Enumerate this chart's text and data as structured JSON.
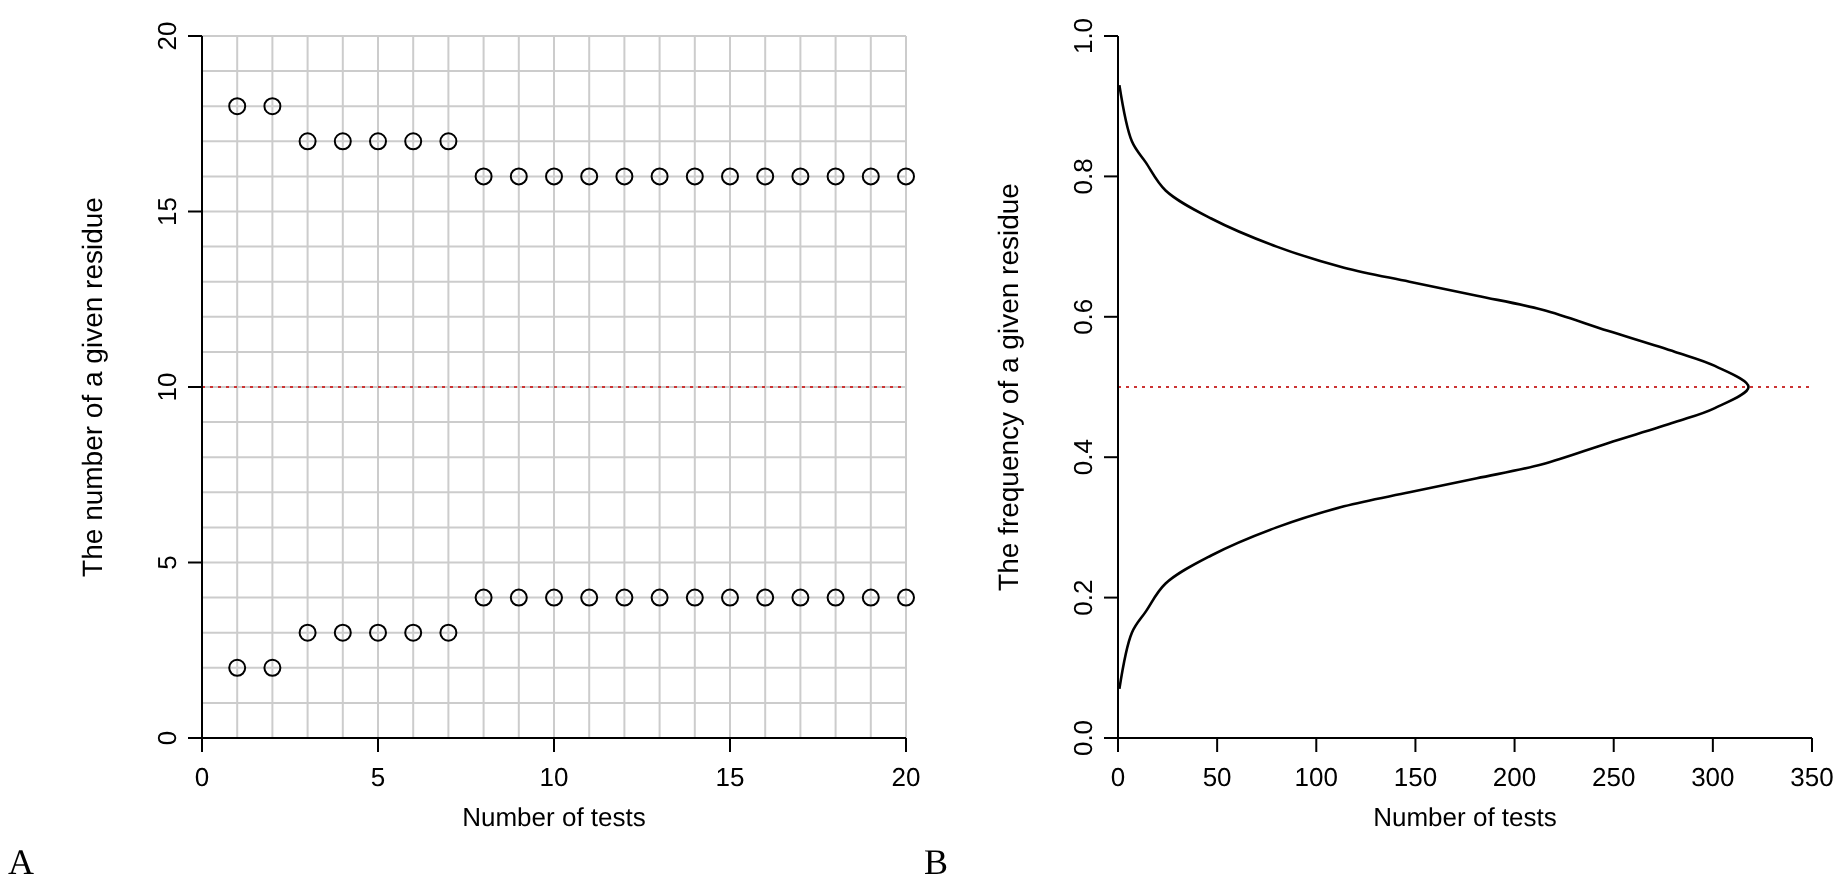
{
  "chart_data": [
    {
      "type": "scatter",
      "xlabel": "Number of tests",
      "ylabel": "The number of a given residue",
      "annotations": [
        "A"
      ],
      "marker": "circle",
      "grid": true,
      "x": [
        1,
        2,
        3,
        4,
        5,
        6,
        7,
        8,
        9,
        10,
        11,
        12,
        13,
        14,
        15,
        16,
        17,
        18,
        19,
        20
      ],
      "series": [
        {
          "color": "#000000",
          "values": [
            18,
            18,
            17,
            17,
            17,
            17,
            17,
            16,
            16,
            16,
            16,
            16,
            16,
            16,
            16,
            16,
            16,
            16,
            16,
            16
          ]
        },
        {
          "color": "#000000",
          "values": [
            2,
            2,
            3,
            3,
            3,
            3,
            3,
            4,
            4,
            4,
            4,
            4,
            4,
            4,
            4,
            4,
            4,
            4,
            4,
            4
          ]
        }
      ],
      "xlim": [
        0,
        20
      ],
      "ylim": [
        0,
        20
      ],
      "xticks": [
        0,
        {
          "value": 1,
          "label": null
        },
        {
          "value": 2,
          "label": null
        },
        {
          "value": 3,
          "label": null
        },
        {
          "value": 4,
          "label": null
        },
        5,
        {
          "value": 6,
          "label": null
        },
        {
          "value": 7,
          "label": null
        },
        {
          "value": 8,
          "label": null
        },
        {
          "value": 9,
          "label": null
        },
        10,
        {
          "value": 11,
          "label": null
        },
        {
          "value": 12,
          "label": null
        },
        {
          "value": 13,
          "label": null
        },
        {
          "value": 14,
          "label": null
        },
        15,
        {
          "value": 16,
          "label": null
        },
        {
          "value": 17,
          "label": null
        },
        {
          "value": 18,
          "label": null
        },
        {
          "value": 19,
          "label": null
        },
        20
      ],
      "yticks": [
        0,
        {
          "value": 1,
          "label": null
        },
        {
          "value": 2,
          "label": null
        },
        {
          "value": 3,
          "label": null
        },
        {
          "value": 4,
          "label": null
        },
        5,
        {
          "value": 6,
          "label": null
        },
        {
          "value": 7,
          "label": null
        },
        {
          "value": 8,
          "label": null
        },
        {
          "value": 9,
          "label": null
        },
        10,
        {
          "value": 11,
          "label": null
        },
        {
          "value": 12,
          "label": null
        },
        {
          "value": 13,
          "label": null
        },
        {
          "value": 14,
          "label": null
        },
        15,
        {
          "value": 16,
          "label": null
        },
        {
          "value": 17,
          "label": null
        },
        {
          "value": 18,
          "label": null
        },
        {
          "value": 19,
          "label": null
        },
        20
      ],
      "ref_lines": [
        {
          "axis": "y",
          "value": 10,
          "color": "#cc3333",
          "line_style": "dotted"
        }
      ]
    },
    {
      "type": "line",
      "xlabel": "Number of tests",
      "ylabel": "The frequency of a given residue",
      "annotations": [
        "B"
      ],
      "line_style": "solid",
      "series": [
        {
          "color": "#000000",
          "x": [
            0.7,
            7,
            14,
            24,
            47,
            80,
            114,
            147,
            181,
            214,
            247,
            281,
            301,
            318,
            301,
            281,
            247,
            214,
            181,
            147,
            114,
            80,
            47,
            24,
            14,
            7,
            0.7
          ],
          "values": [
            0.93,
            0.85,
            0.82,
            0.78,
            0.74,
            0.7,
            0.67,
            0.65,
            0.63,
            0.61,
            0.58,
            0.55,
            0.53,
            0.5,
            0.47,
            0.45,
            0.42,
            0.39,
            0.37,
            0.35,
            0.33,
            0.3,
            0.26,
            0.22,
            0.18,
            0.15,
            0.07
          ]
        }
      ],
      "xlim": [
        0,
        350
      ],
      "ylim": [
        0,
        1
      ],
      "xticks": [
        0,
        50,
        100,
        150,
        200,
        250,
        300,
        350
      ],
      "yticks": [
        {
          "value": 0,
          "label": "0.0"
        },
        {
          "value": 0.2,
          "label": "0.2"
        },
        {
          "value": 0.4,
          "label": "0.4"
        },
        {
          "value": 0.6,
          "label": "0.6"
        },
        {
          "value": 0.8,
          "label": "0.8"
        },
        {
          "value": 1,
          "label": "1.0"
        }
      ],
      "ref_lines": [
        {
          "axis": "y",
          "value": 0.5,
          "color": "#cc3333",
          "line_style": "dotted"
        }
      ]
    }
  ]
}
